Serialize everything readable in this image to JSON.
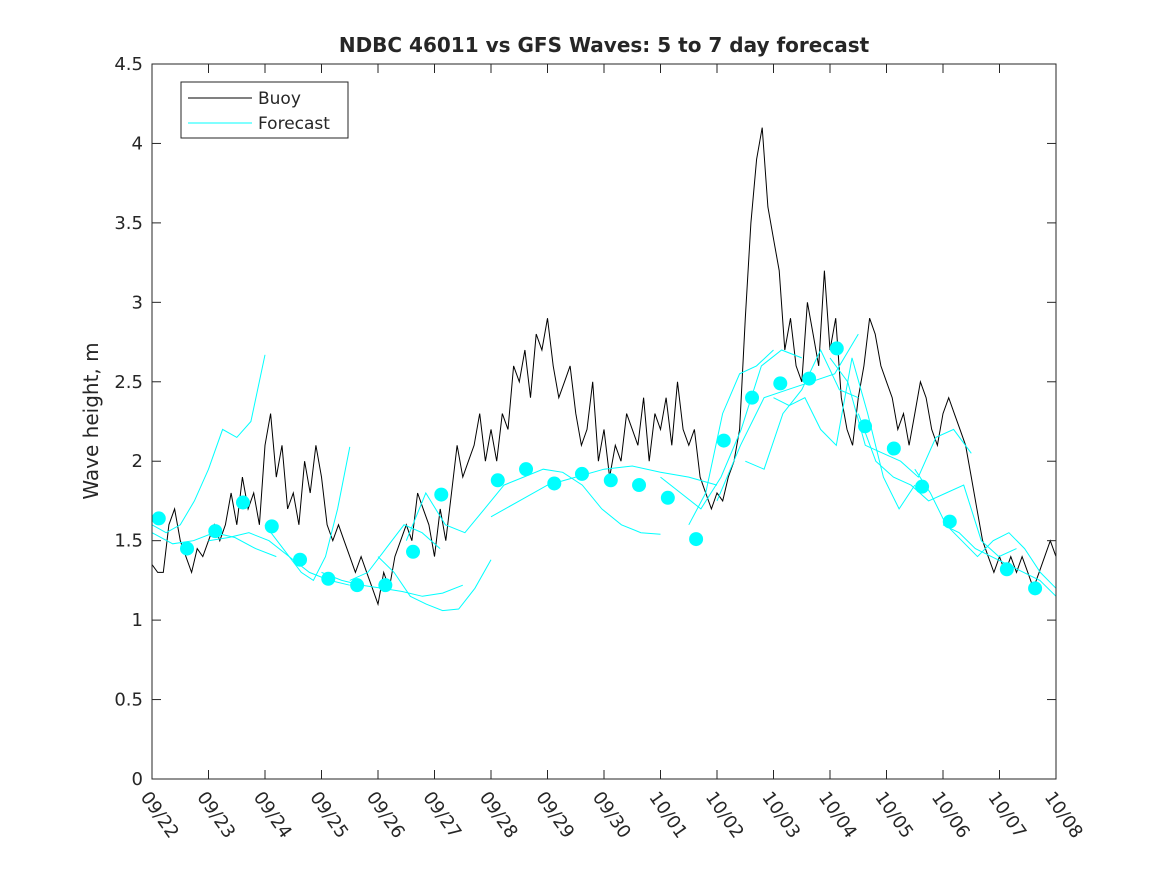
{
  "chart_data": {
    "type": "line",
    "title": "NDBC 46011 vs GFS Waves: 5 to 7 day forecast",
    "xlabel": "",
    "ylabel": "Wave height, m",
    "xlim": [
      0,
      16
    ],
    "ylim": [
      0,
      4.5
    ],
    "x_units": "days since 09/22",
    "x_tick_labels": [
      "09/22",
      "09/23",
      "09/24",
      "09/25",
      "09/26",
      "09/27",
      "09/28",
      "09/29",
      "09/30",
      "10/01",
      "10/02",
      "10/03",
      "10/04",
      "10/05",
      "10/06",
      "10/07",
      "10/08"
    ],
    "y_ticks": [
      0,
      0.5,
      1,
      1.5,
      2,
      2.5,
      3,
      3.5,
      4,
      4.5
    ],
    "y_tick_labels": [
      "0",
      "0.5",
      "1",
      "1.5",
      "2",
      "2.5",
      "3",
      "3.5",
      "4",
      "4.5"
    ],
    "grid": false,
    "legend": {
      "placement": "top-left",
      "entries": [
        "Buoy",
        "Forecast"
      ]
    },
    "colors": {
      "buoy": "#000000",
      "forecast": "#00ffff"
    },
    "buoy": {
      "start": 0,
      "step": 0.1,
      "values": [
        1.35,
        1.3,
        1.3,
        1.6,
        1.7,
        1.5,
        1.4,
        1.3,
        1.45,
        1.4,
        1.5,
        1.6,
        1.5,
        1.6,
        1.8,
        1.6,
        1.9,
        1.7,
        1.8,
        1.6,
        2.1,
        2.3,
        1.9,
        2.1,
        1.7,
        1.8,
        1.6,
        2.0,
        1.8,
        2.1,
        1.9,
        1.6,
        1.5,
        1.6,
        1.5,
        1.4,
        1.3,
        1.4,
        1.3,
        1.2,
        1.1,
        1.3,
        1.2,
        1.4,
        1.5,
        1.6,
        1.5,
        1.8,
        1.7,
        1.6,
        1.4,
        1.7,
        1.5,
        1.8,
        2.1,
        1.9,
        2.0,
        2.1,
        2.3,
        2.0,
        2.2,
        2.0,
        2.3,
        2.2,
        2.6,
        2.5,
        2.7,
        2.4,
        2.8,
        2.7,
        2.9,
        2.6,
        2.4,
        2.5,
        2.6,
        2.3,
        2.1,
        2.2,
        2.5,
        2.0,
        2.2,
        1.9,
        2.1,
        2.0,
        2.3,
        2.2,
        2.1,
        2.4,
        2.0,
        2.3,
        2.2,
        2.4,
        2.1,
        2.5,
        2.2,
        2.1,
        2.2,
        1.9,
        1.8,
        1.7,
        1.8,
        1.75,
        1.9,
        2.0,
        2.2,
        2.9,
        3.5,
        3.9,
        4.1,
        3.6,
        3.4,
        3.2,
        2.7,
        2.9,
        2.6,
        2.5,
        3.0,
        2.8,
        2.6,
        3.2,
        2.7,
        2.9,
        2.4,
        2.2,
        2.1,
        2.4,
        2.6,
        2.9,
        2.8,
        2.6,
        2.5,
        2.4,
        2.2,
        2.3,
        2.1,
        2.3,
        2.5,
        2.4,
        2.2,
        2.1,
        2.3,
        2.4,
        2.3,
        2.2,
        2.1,
        1.9,
        1.7,
        1.5,
        1.4,
        1.3,
        1.4,
        1.3,
        1.4,
        1.3,
        1.4,
        1.3,
        1.2,
        1.3,
        1.4,
        1.5,
        1.4,
        1.3,
        1.4,
        1.5,
        1.4,
        1.3
      ]
    },
    "forecast_lines": [
      {
        "start": 0,
        "end": 2.0,
        "values": [
          1.6,
          1.55,
          1.6,
          1.75,
          1.95,
          2.2,
          2.15,
          2.25,
          2.67
        ]
      },
      {
        "start": 0,
        "end": 2.2,
        "values": [
          1.55,
          1.48,
          1.5,
          1.55,
          1.52,
          1.45,
          1.4
        ]
      },
      {
        "start": 1,
        "end": 3.5,
        "values": [
          1.5,
          1.52,
          1.55,
          1.5,
          1.4,
          1.3,
          1.25,
          1.22
        ]
      },
      {
        "start": 2,
        "end": 3.5,
        "values": [
          1.6,
          1.5,
          1.4,
          1.3,
          1.25,
          1.4,
          1.7,
          2.09
        ]
      },
      {
        "start": 3,
        "end": 5.5,
        "values": [
          1.3,
          1.25,
          1.22,
          1.2,
          1.18,
          1.15,
          1.17,
          1.22
        ]
      },
      {
        "start": 4,
        "end": 6.0,
        "values": [
          1.4,
          1.3,
          1.15,
          1.1,
          1.06,
          1.07,
          1.2,
          1.38
        ]
      },
      {
        "start": 3.5,
        "end": 5.1,
        "values": [
          1.25,
          1.3,
          1.45,
          1.6,
          1.55,
          1.45
        ]
      },
      {
        "start": 4.5,
        "end": 9.0,
        "values": [
          1.5,
          1.8,
          1.6,
          1.55,
          1.7,
          1.85,
          1.9,
          1.95,
          1.93,
          1.85,
          1.7,
          1.6,
          1.55,
          1.54
        ]
      },
      {
        "start": 6,
        "end": 10,
        "values": [
          1.65,
          1.75,
          1.85,
          1.9,
          1.95,
          1.97,
          1.93,
          1.9,
          1.85
        ]
      },
      {
        "start": 9,
        "end": 11.5,
        "values": [
          1.9,
          1.8,
          1.7,
          1.9,
          2.2,
          2.6,
          2.7,
          2.65
        ]
      },
      {
        "start": 9.5,
        "end": 11,
        "values": [
          1.6,
          1.8,
          2.3,
          2.55,
          2.6,
          2.7
        ]
      },
      {
        "start": 10,
        "end": 12.5,
        "values": [
          1.75,
          2.1,
          2.4,
          2.45,
          2.5,
          2.55,
          2.8
        ]
      },
      {
        "start": 10.5,
        "end": 12.5,
        "values": [
          2.0,
          1.95,
          2.3,
          2.45,
          2.7,
          2.45,
          2.4
        ]
      },
      {
        "start": 11,
        "end": 13.5,
        "values": [
          2.4,
          2.35,
          2.4,
          2.2,
          2.1,
          2.65,
          2.3,
          1.9,
          1.7,
          1.85
        ]
      },
      {
        "start": 12,
        "end": 14.5,
        "values": [
          2.65,
          2.5,
          2.1,
          2.05,
          2.0,
          1.9,
          2.15,
          2.2,
          2.05
        ]
      },
      {
        "start": 12.5,
        "end": 15.3,
        "values": [
          2.3,
          2.0,
          1.9,
          1.85,
          1.75,
          1.8,
          1.85,
          1.5,
          1.4,
          1.45
        ]
      },
      {
        "start": 13.5,
        "end": 16,
        "values": [
          1.95,
          1.8,
          1.6,
          1.5,
          1.4,
          1.5,
          1.55,
          1.45,
          1.3,
          1.2
        ]
      },
      {
        "start": 14,
        "end": 16,
        "values": [
          1.6,
          1.55,
          1.45,
          1.4,
          1.35,
          1.3,
          1.25,
          1.15
        ]
      }
    ],
    "forecast_points": {
      "x": [
        0.12,
        0.62,
        1.12,
        1.61,
        2.12,
        2.62,
        3.12,
        3.63,
        4.13,
        4.62,
        5.12,
        6.12,
        6.62,
        7.12,
        7.61,
        8.12,
        8.62,
        9.13,
        9.63,
        10.12,
        10.62,
        11.12,
        11.63,
        12.12,
        12.62,
        13.13,
        13.63,
        14.12,
        15.13,
        15.63
      ],
      "y": [
        1.64,
        1.45,
        1.56,
        1.74,
        1.59,
        1.38,
        1.26,
        1.22,
        1.22,
        1.43,
        1.79,
        1.88,
        1.95,
        1.86,
        1.92,
        1.88,
        1.85,
        1.77,
        1.51,
        2.13,
        2.4,
        2.49,
        2.52,
        2.71,
        2.22,
        2.08,
        1.84,
        1.62,
        1.32,
        1.2
      ]
    }
  }
}
